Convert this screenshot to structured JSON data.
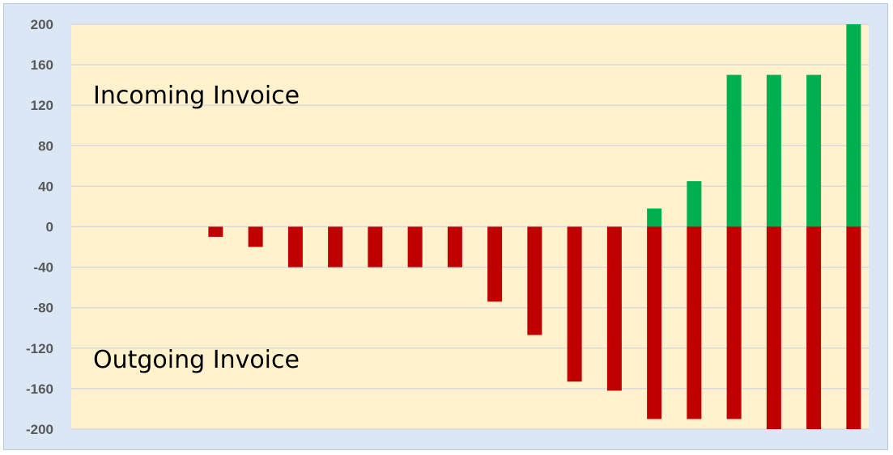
{
  "chart_data": {
    "type": "bar",
    "stacked": true,
    "categories": [
      "",
      "",
      "",
      "",
      "",
      "",
      "",
      "",
      "",
      "",
      "",
      "",
      "",
      "",
      "",
      "",
      "",
      "",
      "",
      ""
    ],
    "series": [
      {
        "color": "#00b050",
        "values": [
          0,
          0,
          0,
          0,
          0,
          0,
          0,
          0,
          0,
          0,
          0,
          0,
          0,
          0,
          18,
          45,
          150,
          150,
          150,
          200
        ]
      },
      {
        "color": "#c00000",
        "values": [
          0,
          0,
          0,
          -10,
          -20,
          -40,
          -40,
          -40,
          -40,
          -40,
          -74,
          -107,
          -153,
          -162,
          -190,
          -190,
          -190,
          -200,
          -200,
          -200
        ]
      }
    ],
    "ylim": [
      -200,
      200
    ],
    "yticks": [
      200,
      160,
      120,
      80,
      40,
      0,
      -40,
      -80,
      -120,
      -160,
      -200
    ],
    "grid": true,
    "annotations": {
      "incoming": "Incoming Invoice",
      "outgoing": "Outgoing Invoice"
    },
    "colors": {
      "plot_background": "#fff2cc",
      "frame_background": "#dbe7f5",
      "gridline": "#d9d9d9"
    }
  }
}
